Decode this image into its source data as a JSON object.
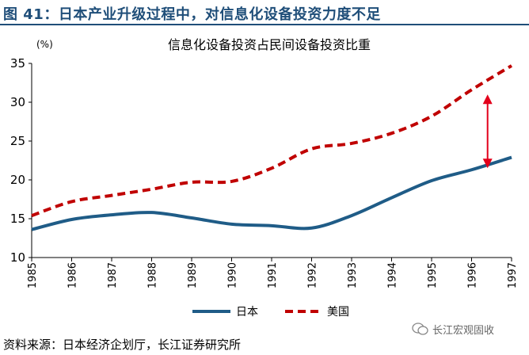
{
  "figure": {
    "title": "图 41：日本产业升级过程中，对信息化设备投资力度不足",
    "source": "资料来源：日本经济企划厅，长江证券研究所",
    "watermark": "长江宏观固收"
  },
  "colors": {
    "title": "#1f4e79",
    "japan": "#1f5c87",
    "usa": "#c00000",
    "arrow": "#e3001b"
  },
  "chart_data": {
    "type": "line",
    "title": "信息化设备投资占民间设备投资比重",
    "unit_label": "(%)",
    "x": [
      "1985",
      "1986",
      "1987",
      "1988",
      "1989",
      "1990",
      "1991",
      "1992",
      "1993",
      "1994",
      "1995",
      "1996",
      "1997"
    ],
    "series": [
      {
        "name": "日本",
        "style": "solid",
        "values": [
          13.6,
          14.9,
          15.5,
          15.8,
          15.1,
          14.3,
          14.1,
          13.8,
          15.4,
          17.7,
          19.9,
          21.3,
          22.9
        ]
      },
      {
        "name": "美国",
        "style": "dashed",
        "values": [
          15.4,
          17.2,
          18.0,
          18.8,
          19.7,
          19.8,
          21.5,
          24.0,
          24.7,
          26.0,
          28.2,
          31.6,
          34.7
        ]
      }
    ],
    "ylim": [
      10,
      35
    ],
    "yticks": [
      10,
      15,
      20,
      25,
      30,
      35
    ],
    "grid": false,
    "legend": "bottom",
    "annotation": {
      "type": "double-arrow",
      "x": "1996.4",
      "from": 21.5,
      "to": 31.0
    }
  }
}
